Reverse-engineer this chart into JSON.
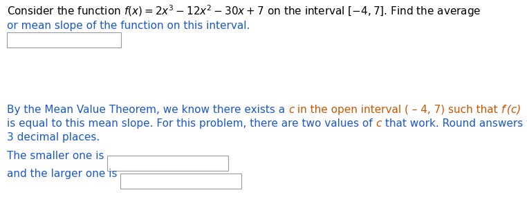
{
  "bg_color": "#ffffff",
  "text_color_black": "#000000",
  "text_color_blue": "#1a56cc",
  "text_color_orange": "#cc5500",
  "figsize": [
    7.62,
    2.89
  ],
  "dpi": 100,
  "fs": 11.0,
  "line1": "Consider the function $f(x) = 2x^3 - 12x^2 - 30x + 7$ on the interval $[-4, 7]$. Find the average",
  "line2": "or mean slope of the function on this interval.",
  "line3_seg1": "By the Mean Value Theorem, we know there exists a ",
  "line3_c": "c",
  "line3_seg2": " in the open interval ( – 4, 7) such that ",
  "line3_fprimec": "f′(c)",
  "line4_seg1": "is equal to this mean slope. For this problem, there are two values of ",
  "line4_c": "c",
  "line4_seg2": " that work. Round answers to",
  "line5": "3 decimal places.",
  "smaller_label": "The smaller one is",
  "larger_label": "and the larger one is"
}
